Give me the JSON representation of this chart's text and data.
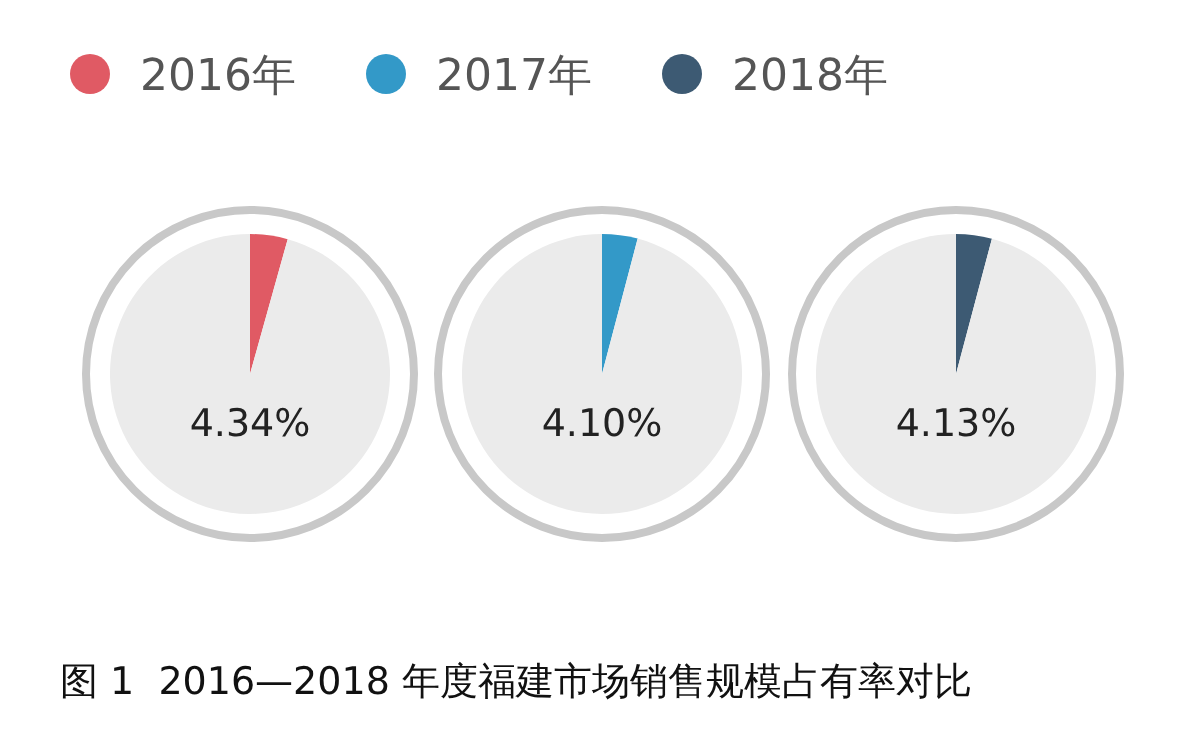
{
  "chart_data": [
    {
      "type": "pie",
      "categories": [
        "2016年",
        null
      ],
      "values": [
        4.34,
        95.66
      ],
      "colors": [
        "#e05a64",
        "#ebebeb"
      ],
      "legend": "top left",
      "annotations": [
        "4.34%",
        "图 1  2016—2018 年度福建市场销售规模占有率对比"
      ]
    },
    {
      "type": "pie",
      "categories": [
        "2017年",
        null
      ],
      "values": [
        4.1,
        95.9
      ],
      "colors": [
        "#3399c8",
        "#ebebeb"
      ],
      "legend": "top left",
      "annotations": [
        "4.10%"
      ]
    },
    {
      "type": "pie",
      "categories": [
        "2018年",
        null
      ],
      "values": [
        4.13,
        95.87
      ],
      "colors": [
        "#3d5a73",
        "#ebebeb"
      ],
      "legend": "top left",
      "annotations": [
        "4.13%"
      ]
    }
  ]
}
